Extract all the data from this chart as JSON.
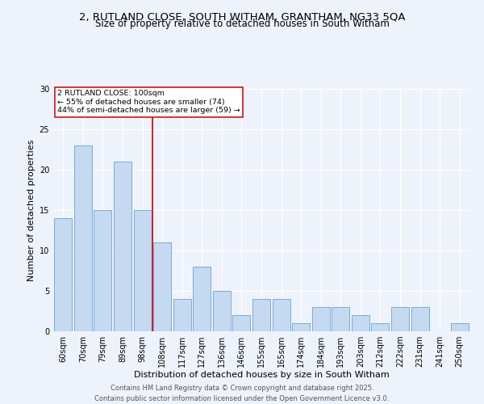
{
  "title_line1": "2, RUTLAND CLOSE, SOUTH WITHAM, GRANTHAM, NG33 5QA",
  "title_line2": "Size of property relative to detached houses in South Witham",
  "xlabel": "Distribution of detached houses by size in South Witham",
  "ylabel": "Number of detached properties",
  "categories": [
    "60sqm",
    "70sqm",
    "79sqm",
    "89sqm",
    "98sqm",
    "108sqm",
    "117sqm",
    "127sqm",
    "136sqm",
    "146sqm",
    "155sqm",
    "165sqm",
    "174sqm",
    "184sqm",
    "193sqm",
    "203sqm",
    "212sqm",
    "222sqm",
    "231sqm",
    "241sqm",
    "250sqm"
  ],
  "values": [
    14,
    23,
    15,
    21,
    15,
    11,
    4,
    8,
    5,
    2,
    4,
    4,
    1,
    3,
    3,
    2,
    1,
    3,
    3,
    0,
    1
  ],
  "bar_color": "#c5d9f0",
  "bar_edge_color": "#7aabdb",
  "annotation_text": "2 RUTLAND CLOSE: 100sqm\n← 55% of detached houses are smaller (74)\n44% of semi-detached houses are larger (59) →",
  "vline_x": 4.5,
  "vline_color": "#cc0000",
  "annotation_box_color": "#ffffff",
  "annotation_box_edge": "#cc0000",
  "ylim": [
    0,
    30
  ],
  "yticks": [
    0,
    5,
    10,
    15,
    20,
    25,
    30
  ],
  "background_color": "#eef2fa",
  "footer_line1": "Contains HM Land Registry data © Crown copyright and database right 2025.",
  "footer_line2": "Contains public sector information licensed under the Open Government Licence v3.0.",
  "title_fontsize": 9.5,
  "subtitle_fontsize": 8.5,
  "axis_label_fontsize": 8,
  "tick_fontsize": 7,
  "footer_fontsize": 6
}
